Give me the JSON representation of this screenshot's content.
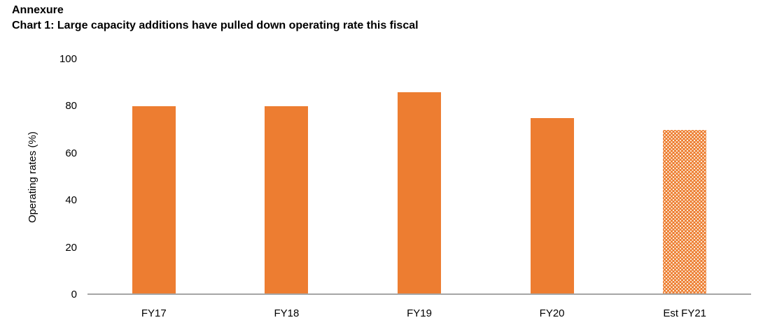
{
  "header": {
    "annexure": "Annexure",
    "chart_title": "Chart 1: Large capacity additions have pulled down operating rate this fiscal"
  },
  "chart_data": {
    "type": "bar",
    "title": "Chart 1: Large capacity additions have pulled down operating rate this fiscal",
    "categories": [
      "FY17",
      "FY18",
      "FY19",
      "FY20",
      "Est FY21"
    ],
    "values": [
      80,
      80,
      86,
      75,
      70
    ],
    "xlabel": "",
    "ylabel": "Operating rates (%)",
    "ylim": [
      0,
      100
    ],
    "yticks": [
      0,
      20,
      40,
      60,
      80,
      100
    ],
    "grid": false,
    "legend": "none",
    "bar_color": "#ED7D31",
    "estimated_bar": {
      "category": "Est FY21",
      "fill_style": "white-dot-pattern"
    },
    "axis_line_color": "#A6A6A6",
    "text_color": "#000000"
  }
}
